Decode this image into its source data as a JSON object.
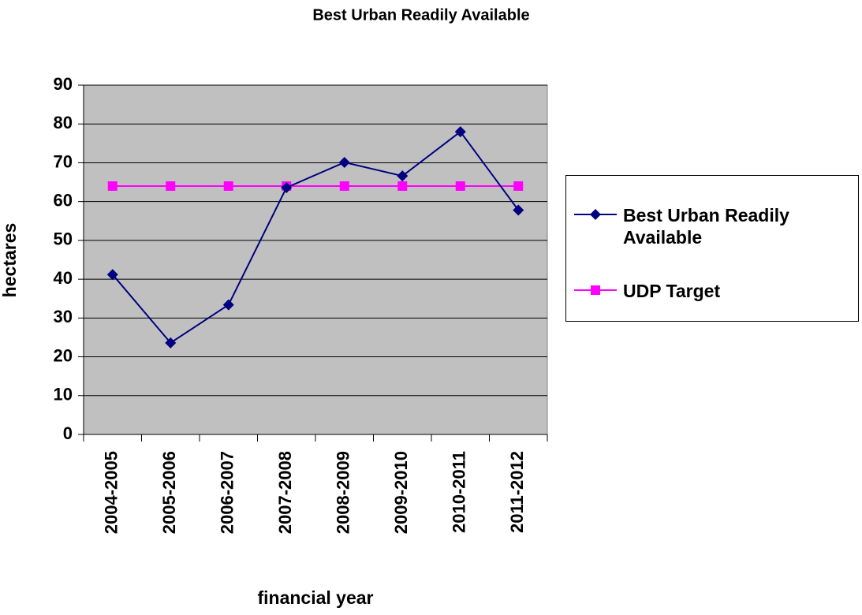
{
  "chart_data": {
    "type": "line",
    "title": "Best Urban Readily Available",
    "xlabel": "financial year",
    "ylabel": "hectares",
    "categories": [
      "2004-2005",
      "2005-2006",
      "2006-2007",
      "2007-2008",
      "2008-2009",
      "2009-2010",
      "2010-2011",
      "2011-2012"
    ],
    "series": [
      {
        "name": "Best Urban Readily Available",
        "color": "#000080",
        "marker": "diamond",
        "values": [
          41.2,
          23.6,
          33.4,
          63.6,
          70.1,
          66.6,
          78,
          57.8
        ]
      },
      {
        "name": "UDP Target",
        "color": "#ff00ff",
        "marker": "square",
        "values": [
          64,
          64,
          64,
          64,
          64,
          64,
          64,
          64
        ]
      }
    ],
    "ylim": [
      0,
      90
    ],
    "yticks": [
      0,
      10,
      20,
      30,
      40,
      50,
      60,
      70,
      80,
      90
    ],
    "grid": true,
    "legend": "right"
  }
}
